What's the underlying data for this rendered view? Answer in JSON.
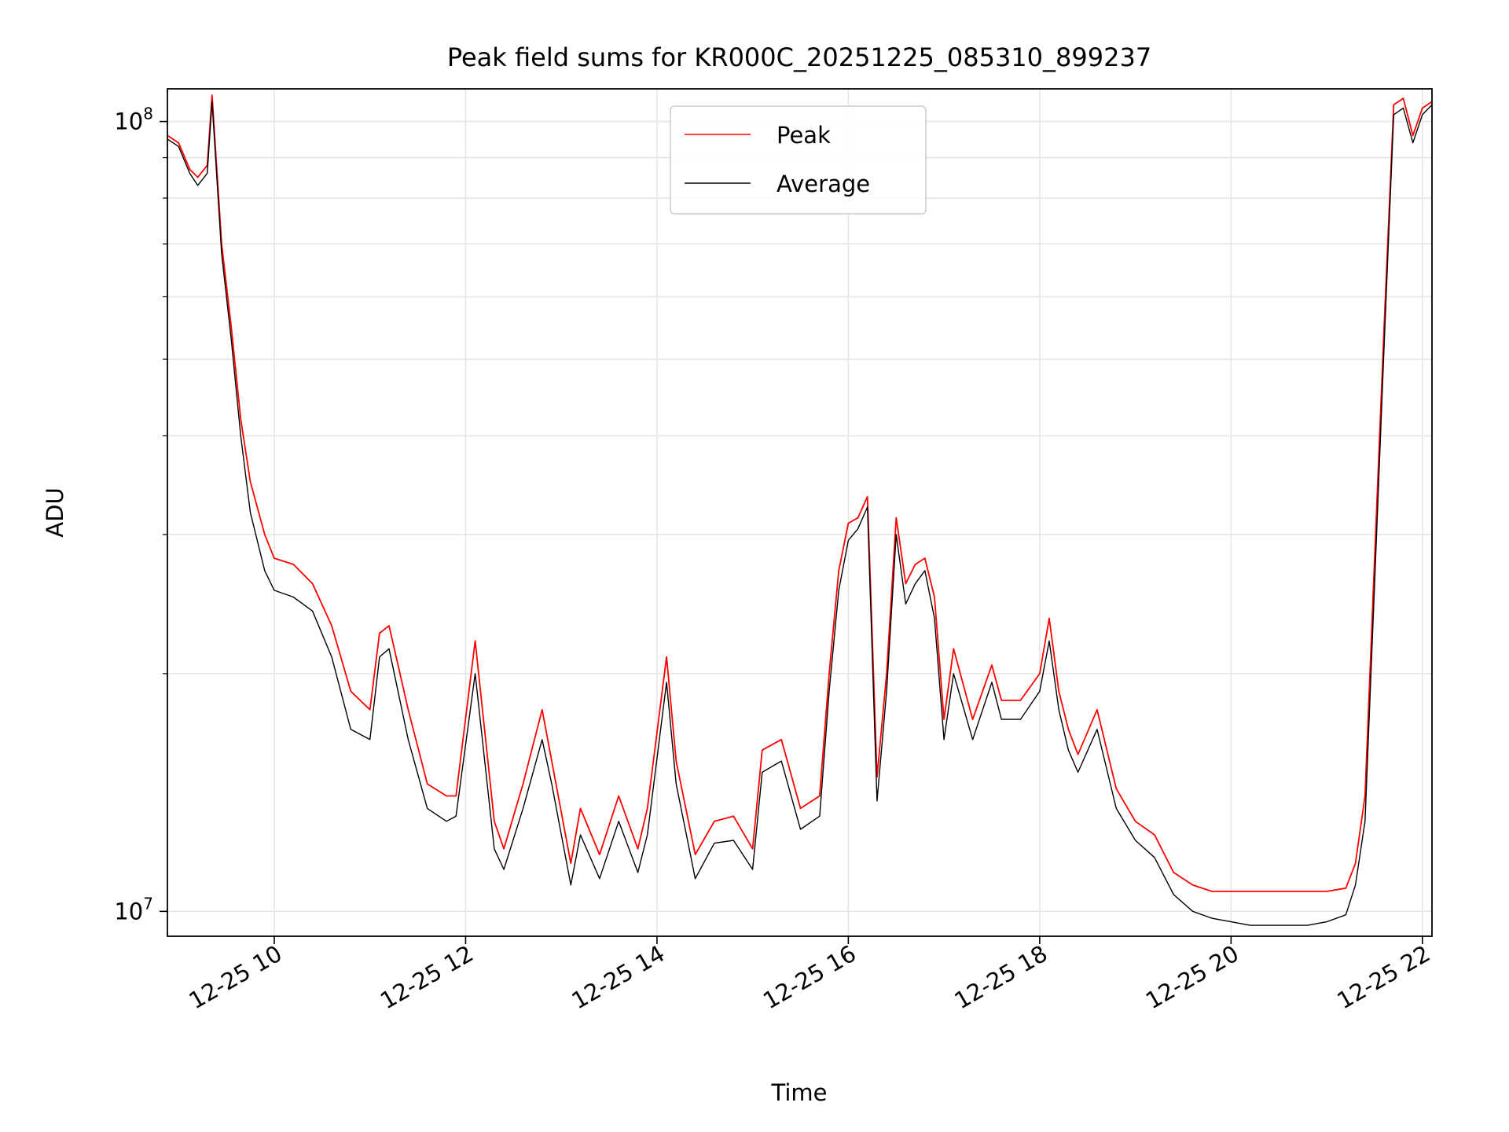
{
  "chart_data": {
    "type": "line",
    "title": "Peak field sums for KR000C_20251225_085310_899237",
    "xlabel": "Time",
    "ylabel": "ADU",
    "yscale": "log",
    "grid": true,
    "legend_placement": "upper center",
    "xlim": [
      "2025-12-25 08:53",
      "2025-12-25 22:06"
    ],
    "ylim": [
      9300000.0,
      110000000.0
    ],
    "x_ticks": [
      {
        "x": "2025-12-25 10:00",
        "label": "12-25 10"
      },
      {
        "x": "2025-12-25 12:00",
        "label": "12-25 12"
      },
      {
        "x": "2025-12-25 14:00",
        "label": "12-25 14"
      },
      {
        "x": "2025-12-25 16:00",
        "label": "12-25 16"
      },
      {
        "x": "2025-12-25 18:00",
        "label": "12-25 18"
      },
      {
        "x": "2025-12-25 20:00",
        "label": "12-25 20"
      },
      {
        "x": "2025-12-25 22:00",
        "label": "12-25 22"
      }
    ],
    "y_ticks": [
      {
        "value": 10000000.0,
        "label_base": "10",
        "label_exp": "7"
      },
      {
        "value": 100000000.0,
        "label_base": "10",
        "label_exp": "8"
      }
    ],
    "series": [
      {
        "name": "Peak",
        "color": "#ff0000",
        "x": [
          "2025-12-25 08:53",
          "2025-12-25 09:00",
          "2025-12-25 09:07",
          "2025-12-25 09:12",
          "2025-12-25 09:18",
          "2025-12-25 09:21",
          "2025-12-25 09:27",
          "2025-12-25 09:33",
          "2025-12-25 09:39",
          "2025-12-25 09:45",
          "2025-12-25 09:54",
          "2025-12-25 10:00",
          "2025-12-25 10:12",
          "2025-12-25 10:24",
          "2025-12-25 10:36",
          "2025-12-25 10:48",
          "2025-12-25 11:00",
          "2025-12-25 11:06",
          "2025-12-25 11:12",
          "2025-12-25 11:24",
          "2025-12-25 11:36",
          "2025-12-25 11:48",
          "2025-12-25 11:54",
          "2025-12-25 12:06",
          "2025-12-25 12:18",
          "2025-12-25 12:24",
          "2025-12-25 12:36",
          "2025-12-25 12:48",
          "2025-12-25 12:54",
          "2025-12-25 13:06",
          "2025-12-25 13:12",
          "2025-12-25 13:24",
          "2025-12-25 13:36",
          "2025-12-25 13:48",
          "2025-12-25 13:54",
          "2025-12-25 14:06",
          "2025-12-25 14:12",
          "2025-12-25 14:24",
          "2025-12-25 14:36",
          "2025-12-25 14:48",
          "2025-12-25 15:00",
          "2025-12-25 15:06",
          "2025-12-25 15:18",
          "2025-12-25 15:30",
          "2025-12-25 15:42",
          "2025-12-25 15:48",
          "2025-12-25 15:54",
          "2025-12-25 16:00",
          "2025-12-25 16:06",
          "2025-12-25 16:12",
          "2025-12-25 16:18",
          "2025-12-25 16:24",
          "2025-12-25 16:30",
          "2025-12-25 16:36",
          "2025-12-25 16:42",
          "2025-12-25 16:48",
          "2025-12-25 16:54",
          "2025-12-25 17:00",
          "2025-12-25 17:06",
          "2025-12-25 17:18",
          "2025-12-25 17:30",
          "2025-12-25 17:36",
          "2025-12-25 17:48",
          "2025-12-25 18:00",
          "2025-12-25 18:06",
          "2025-12-25 18:12",
          "2025-12-25 18:18",
          "2025-12-25 18:24",
          "2025-12-25 18:36",
          "2025-12-25 18:48",
          "2025-12-25 19:00",
          "2025-12-25 19:12",
          "2025-12-25 19:24",
          "2025-12-25 19:36",
          "2025-12-25 19:48",
          "2025-12-25 20:00",
          "2025-12-25 20:12",
          "2025-12-25 20:24",
          "2025-12-25 20:36",
          "2025-12-25 20:48",
          "2025-12-25 21:00",
          "2025-12-25 21:12",
          "2025-12-25 21:18",
          "2025-12-25 21:24",
          "2025-12-25 21:30",
          "2025-12-25 21:36",
          "2025-12-25 21:42",
          "2025-12-25 21:48",
          "2025-12-25 21:54",
          "2025-12-25 22:00",
          "2025-12-25 22:06"
        ],
        "y": [
          96000000,
          94000000,
          87000000,
          85000000,
          88000000,
          108000000,
          70000000,
          55000000,
          42000000,
          35000000,
          30000000,
          28000000,
          27500000,
          26000000,
          23000000,
          19000000,
          18000000,
          22500000,
          23000000,
          18000000,
          14500000,
          14000000,
          14000000,
          22000000,
          13000000,
          12000000,
          14500000,
          18000000,
          15500000,
          11500000,
          13500000,
          11800000,
          14000000,
          12000000,
          13500000,
          21000000,
          15500000,
          11800000,
          13000000,
          13200000,
          12000000,
          16000000,
          16500000,
          13500000,
          14000000,
          20000000,
          27000000,
          31000000,
          31500000,
          33500000,
          14800000,
          20000000,
          31500000,
          26000000,
          27500000,
          28000000,
          25000000,
          17500000,
          21500000,
          17500000,
          20500000,
          18500000,
          18500000,
          20000000,
          23500000,
          19000000,
          17000000,
          15800000,
          18000000,
          14300000,
          13000000,
          12500000,
          11200000,
          10800000,
          10600000,
          10600000,
          10600000,
          10600000,
          10600000,
          10600000,
          10600000,
          10700000,
          11500000,
          14000000,
          28000000,
          55000000,
          105000000,
          107000000,
          96000000,
          104000000,
          106000000
        ]
      },
      {
        "name": "Average",
        "color": "#000000",
        "x": [
          "2025-12-25 08:53",
          "2025-12-25 09:00",
          "2025-12-25 09:07",
          "2025-12-25 09:12",
          "2025-12-25 09:18",
          "2025-12-25 09:21",
          "2025-12-25 09:27",
          "2025-12-25 09:33",
          "2025-12-25 09:39",
          "2025-12-25 09:45",
          "2025-12-25 09:54",
          "2025-12-25 10:00",
          "2025-12-25 10:12",
          "2025-12-25 10:24",
          "2025-12-25 10:36",
          "2025-12-25 10:48",
          "2025-12-25 11:00",
          "2025-12-25 11:06",
          "2025-12-25 11:12",
          "2025-12-25 11:24",
          "2025-12-25 11:36",
          "2025-12-25 11:48",
          "2025-12-25 11:54",
          "2025-12-25 12:06",
          "2025-12-25 12:18",
          "2025-12-25 12:24",
          "2025-12-25 12:36",
          "2025-12-25 12:48",
          "2025-12-25 12:54",
          "2025-12-25 13:06",
          "2025-12-25 13:12",
          "2025-12-25 13:24",
          "2025-12-25 13:36",
          "2025-12-25 13:48",
          "2025-12-25 13:54",
          "2025-12-25 14:06",
          "2025-12-25 14:12",
          "2025-12-25 14:24",
          "2025-12-25 14:36",
          "2025-12-25 14:48",
          "2025-12-25 15:00",
          "2025-12-25 15:06",
          "2025-12-25 15:18",
          "2025-12-25 15:30",
          "2025-12-25 15:42",
          "2025-12-25 15:48",
          "2025-12-25 15:54",
          "2025-12-25 16:00",
          "2025-12-25 16:06",
          "2025-12-25 16:12",
          "2025-12-25 16:18",
          "2025-12-25 16:24",
          "2025-12-25 16:30",
          "2025-12-25 16:36",
          "2025-12-25 16:42",
          "2025-12-25 16:48",
          "2025-12-25 16:54",
          "2025-12-25 17:00",
          "2025-12-25 17:06",
          "2025-12-25 17:18",
          "2025-12-25 17:30",
          "2025-12-25 17:36",
          "2025-12-25 17:48",
          "2025-12-25 18:00",
          "2025-12-25 18:06",
          "2025-12-25 18:12",
          "2025-12-25 18:18",
          "2025-12-25 18:24",
          "2025-12-25 18:36",
          "2025-12-25 18:48",
          "2025-12-25 19:00",
          "2025-12-25 19:12",
          "2025-12-25 19:24",
          "2025-12-25 19:36",
          "2025-12-25 19:48",
          "2025-12-25 20:00",
          "2025-12-25 20:12",
          "2025-12-25 20:24",
          "2025-12-25 20:36",
          "2025-12-25 20:48",
          "2025-12-25 21:00",
          "2025-12-25 21:12",
          "2025-12-25 21:18",
          "2025-12-25 21:24",
          "2025-12-25 21:30",
          "2025-12-25 21:36",
          "2025-12-25 21:42",
          "2025-12-25 21:48",
          "2025-12-25 21:54",
          "2025-12-25 22:00",
          "2025-12-25 22:06"
        ],
        "y": [
          95000000,
          93000000,
          86000000,
          83000000,
          86000000,
          106000000,
          68000000,
          53000000,
          40000000,
          32000000,
          27000000,
          25500000,
          25000000,
          24000000,
          21000000,
          17000000,
          16500000,
          21000000,
          21500000,
          16500000,
          13500000,
          13000000,
          13200000,
          20000000,
          12000000,
          11300000,
          13500000,
          16500000,
          14500000,
          10800000,
          12500000,
          11000000,
          13000000,
          11200000,
          12500000,
          19500000,
          14500000,
          11000000,
          12200000,
          12300000,
          11300000,
          15000000,
          15500000,
          12700000,
          13200000,
          19000000,
          25500000,
          29500000,
          30500000,
          32500000,
          13800000,
          19000000,
          30000000,
          24500000,
          26000000,
          27000000,
          23500000,
          16500000,
          20000000,
          16500000,
          19500000,
          17500000,
          17500000,
          19000000,
          22000000,
          18000000,
          16000000,
          15000000,
          17000000,
          13500000,
          12300000,
          11700000,
          10500000,
          10000000,
          9800000,
          9700000,
          9600000,
          9600000,
          9600000,
          9600000,
          9700000,
          9900000,
          10800000,
          13000000,
          26000000,
          52000000,
          102000000,
          104000000,
          94000000,
          102000000,
          105000000
        ]
      }
    ]
  }
}
